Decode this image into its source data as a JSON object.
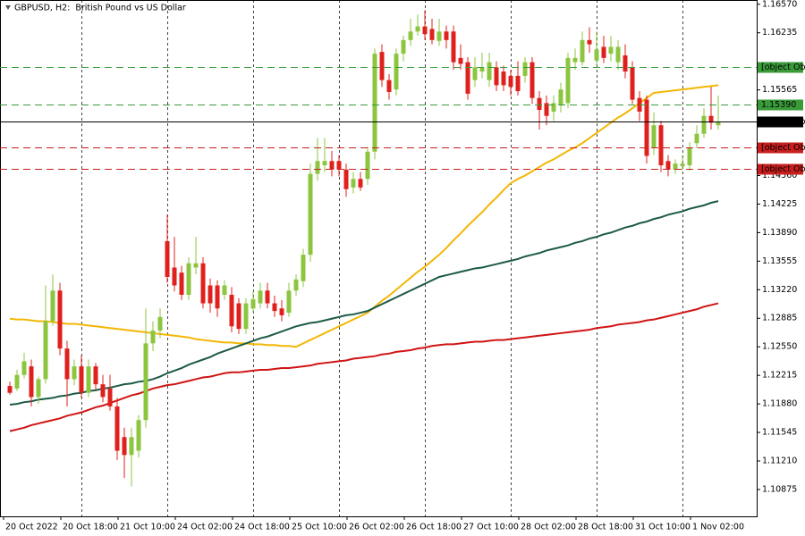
{
  "chart_data": {
    "type": "candlestick",
    "title": "GBPUSD, H2:  British Pound vs US Dollar",
    "categories": [
      "20 Oct 2022",
      null,
      null,
      null,
      null,
      null,
      null,
      null,
      "20 Oct 18:00",
      null,
      null,
      null,
      null,
      null,
      null,
      null,
      "21 Oct 10:00",
      null,
      null,
      null,
      null,
      null,
      null,
      null,
      "24 Oct 02:00",
      null,
      null,
      null,
      null,
      null,
      null,
      null,
      "24 Oct 18:00",
      null,
      null,
      null,
      null,
      null,
      null,
      null,
      "25 Oct 10:00",
      null,
      null,
      null,
      null,
      null,
      null,
      null,
      "26 Oct 02:00",
      null,
      null,
      null,
      null,
      null,
      null,
      null,
      "26 Oct 18:00",
      null,
      null,
      null,
      null,
      null,
      null,
      null,
      "27 Oct 10:00",
      null,
      null,
      null,
      null,
      null,
      null,
      null,
      "28 Oct 02:00",
      null,
      null,
      null,
      null,
      null,
      null,
      null,
      "28 Oct 18:00",
      null,
      null,
      null,
      null,
      null,
      null,
      null,
      "31 Oct 10:00",
      null,
      null,
      null,
      null,
      null,
      null,
      null,
      "1 Nov 02:00",
      null,
      null,
      null
    ],
    "open": [
      1.1209,
      1.1206,
      1.1222,
      1.1232,
      1.1196,
      1.1217,
      1.1285,
      1.1321,
      1.1253,
      1.1217,
      1.1232,
      1.1201,
      1.1232,
      1.1211,
      1.1206,
      1.1185,
      1.1149,
      1.1128,
      1.1133,
      1.1169,
      1.1259,
      1.1274,
      1.1379,
      1.1348,
      1.1342,
      1.1316,
      1.1348,
      1.1353,
      1.1327,
      1.1327,
      1.1316,
      1.1316,
      1.1306,
      1.1276,
      1.13,
      1.1306,
      1.1321,
      1.1306,
      1.13,
      1.1295,
      1.1321,
      1.1332,
      1.1363,
      1.1458,
      1.1468,
      1.1473,
      1.1473,
      1.1463,
      1.1442,
      1.1452,
      1.1452,
      1.1484,
      1.1601,
      1.1568,
      1.1557,
      1.1599,
      1.1615,
      1.1625,
      1.1631,
      1.1628,
      1.1614,
      1.1625,
      1.1625,
      1.1594,
      1.1589,
      1.1568,
      1.1578,
      1.1568,
      1.1583,
      1.1578,
      1.1573,
      1.1573,
      1.1573,
      1.1589,
      1.1547,
      1.1541,
      1.1531,
      1.1539,
      1.1541,
      1.1589,
      1.1589,
      1.1615,
      1.1591,
      1.1607,
      1.1599,
      1.1589,
      1.1597,
      1.1583,
      1.1547,
      1.1545,
      1.1489,
      1.1515,
      1.1473,
      1.1463,
      1.1467,
      1.1468,
      1.1494,
      1.1505,
      1.1526,
      1.1515
    ],
    "high": [
      1.1214,
      1.1228,
      1.1248,
      1.124,
      1.122,
      1.1327,
      1.134,
      1.133,
      1.1262,
      1.124,
      1.1245,
      1.124,
      1.1236,
      1.1222,
      1.1222,
      1.1195,
      1.116,
      1.116,
      1.1175,
      1.13,
      1.1285,
      1.13,
      1.141,
      1.1384,
      1.135,
      1.136,
      1.1384,
      1.136,
      1.1335,
      1.1333,
      1.1333,
      1.1325,
      1.1312,
      1.1312,
      1.132,
      1.133,
      1.133,
      1.1315,
      1.131,
      1.133,
      1.134,
      1.137,
      1.147,
      1.15,
      1.15,
      1.1485,
      1.148,
      1.147,
      1.146,
      1.146,
      1.149,
      1.1605,
      1.161,
      1.1575,
      1.1605,
      1.162,
      1.164,
      1.1645,
      1.165,
      1.164,
      1.164,
      1.1632,
      1.1632,
      1.161,
      1.1595,
      1.1595,
      1.16,
      1.16,
      1.159,
      1.1585,
      1.158,
      1.159,
      1.1595,
      1.1595,
      1.1555,
      1.155,
      1.155,
      1.1565,
      1.16,
      1.1605,
      1.1625,
      1.163,
      1.1625,
      1.162,
      1.162,
      1.1615,
      1.161,
      1.159,
      1.1555,
      1.155,
      1.153,
      1.152,
      1.148,
      1.1475,
      1.148,
      1.1495,
      1.1515,
      1.1535,
      1.156,
      1.155
    ],
    "low": [
      1.1199,
      1.1203,
      1.1218,
      1.1185,
      1.1188,
      1.1212,
      1.128,
      1.1245,
      1.1185,
      1.121,
      1.1195,
      1.1196,
      1.1205,
      1.119,
      1.118,
      1.1122,
      1.1101,
      1.1091,
      1.1125,
      1.116,
      1.125,
      1.1265,
      1.133,
      1.132,
      1.131,
      1.131,
      1.134,
      1.13,
      1.1295,
      1.129,
      1.131,
      1.1272,
      1.127,
      1.127,
      1.1295,
      1.13,
      1.13,
      1.129,
      1.1285,
      1.129,
      1.1315,
      1.1325,
      1.1355,
      1.145,
      1.146,
      1.1455,
      1.1455,
      1.1431,
      1.1435,
      1.1438,
      1.1445,
      1.1475,
      1.156,
      1.1545,
      1.155,
      1.159,
      1.1608,
      1.162,
      1.1615,
      1.161,
      1.1608,
      1.1605,
      1.158,
      1.158,
      1.1545,
      1.156,
      1.157,
      1.156,
      1.1555,
      1.1555,
      1.155,
      1.155,
      1.1565,
      1.154,
      1.151,
      1.1515,
      1.152,
      1.153,
      1.1535,
      1.158,
      1.1585,
      1.16,
      1.1585,
      1.1588,
      1.159,
      1.158,
      1.157,
      1.154,
      1.152,
      1.147,
      1.148,
      1.146,
      1.1455,
      1.1458,
      1.1462,
      1.1462,
      1.1488,
      1.15,
      1.151,
      1.151
    ],
    "close": [
      1.1201,
      1.1222,
      1.1238,
      1.1196,
      1.1217,
      1.1285,
      1.1321,
      1.1253,
      1.1217,
      1.1232,
      1.1201,
      1.1232,
      1.1211,
      1.1196,
      1.1185,
      1.1133,
      1.1128,
      1.1149,
      1.1169,
      1.1259,
      1.1274,
      1.129,
      1.1337,
      1.1327,
      1.1316,
      1.1353,
      1.1353,
      1.1306,
      1.1306,
      1.13,
      1.1327,
      1.1279,
      1.1276,
      1.1306,
      1.1311,
      1.1321,
      1.1306,
      1.1297,
      1.1292,
      1.1321,
      1.1334,
      1.1363,
      1.1458,
      1.1473,
      1.1473,
      1.1463,
      1.1463,
      1.144,
      1.1452,
      1.1442,
      1.1484,
      1.1599,
      1.1568,
      1.1554,
      1.1599,
      1.1615,
      1.1625,
      1.1631,
      1.1622,
      1.1615,
      1.1625,
      1.1615,
      1.1589,
      1.1587,
      1.1552,
      1.1583,
      1.1583,
      1.1589,
      1.1562,
      1.1562,
      1.156,
      1.1555,
      1.1589,
      1.1547,
      1.1533,
      1.1526,
      1.1541,
      1.1557,
      1.1594,
      1.1594,
      1.1615,
      1.161,
      1.1604,
      1.1594,
      1.1607,
      1.1607,
      1.1578,
      1.1545,
      1.1531,
      1.1479,
      1.1515,
      1.1468,
      1.1463,
      1.147,
      1.147,
      1.1489,
      1.1505,
      1.1526,
      1.1518,
      1.1519
    ],
    "up_color": "#8cc63f",
    "down_color": "#e0201c",
    "moving_averages": [
      {
        "color": "#f2b705",
        "values": [
          1.1288,
          1.1287,
          1.1287,
          1.1286,
          1.1285,
          1.1285,
          1.1284,
          1.1283,
          1.1282,
          1.1282,
          1.1281,
          1.128,
          1.1279,
          1.1278,
          1.1277,
          1.1276,
          1.1275,
          1.1274,
          1.1273,
          1.1272,
          1.1271,
          1.127,
          1.1269,
          1.1268,
          1.1267,
          1.1266,
          1.1264,
          1.1263,
          1.1262,
          1.1261,
          1.126,
          1.126,
          1.1259,
          1.1259,
          1.1258,
          1.1258,
          1.1257,
          1.1257,
          1.1256,
          1.1256,
          1.1255,
          1.1259,
          1.1263,
          1.1267,
          1.1271,
          1.1275,
          1.1279,
          1.1283,
          1.1287,
          1.1291,
          1.1295,
          1.1302,
          1.1309,
          1.1315,
          1.1322,
          1.1329,
          1.1336,
          1.1343,
          1.1349,
          1.1356,
          1.1363,
          1.1371,
          1.138,
          1.1388,
          1.1397,
          1.1405,
          1.1413,
          1.1422,
          1.143,
          1.1439,
          1.1447,
          1.1452,
          1.1456,
          1.1461,
          1.1466,
          1.1471,
          1.1475,
          1.148,
          1.1485,
          1.1489,
          1.1494,
          1.15,
          1.1506,
          1.1512,
          1.1518,
          1.1524,
          1.1529,
          1.1535,
          1.1541,
          1.1547,
          1.1553,
          1.1554,
          1.1555,
          1.1556,
          1.1557,
          1.1558,
          1.1559,
          1.156,
          1.1561,
          1.1562
        ]
      },
      {
        "color": "#1d5a46",
        "values": [
          1.1187,
          1.1188,
          1.119,
          1.1191,
          1.1193,
          1.1194,
          1.1195,
          1.1197,
          1.1198,
          1.12,
          1.1201,
          1.1203,
          1.1204,
          1.1206,
          1.1207,
          1.1209,
          1.1211,
          1.1212,
          1.1214,
          1.1215,
          1.1217,
          1.122,
          1.1224,
          1.1227,
          1.123,
          1.1234,
          1.1237,
          1.124,
          1.1243,
          1.1247,
          1.125,
          1.1253,
          1.1256,
          1.1259,
          1.1262,
          1.1265,
          1.1267,
          1.127,
          1.1273,
          1.1276,
          1.1279,
          1.1281,
          1.1283,
          1.1284,
          1.1286,
          1.1288,
          1.129,
          1.1292,
          1.1293,
          1.1295,
          1.1297,
          1.1301,
          1.1305,
          1.1309,
          1.1313,
          1.1317,
          1.1321,
          1.1325,
          1.1329,
          1.1333,
          1.1337,
          1.1339,
          1.1341,
          1.1343,
          1.1345,
          1.1347,
          1.1348,
          1.135,
          1.1352,
          1.1354,
          1.1356,
          1.1358,
          1.1361,
          1.1363,
          1.1365,
          1.1368,
          1.137,
          1.1372,
          1.1374,
          1.1377,
          1.1379,
          1.1382,
          1.1384,
          1.1387,
          1.1389,
          1.1392,
          1.1395,
          1.1397,
          1.14,
          1.1402,
          1.1405,
          1.1407,
          1.141,
          1.1412,
          1.1414,
          1.1417,
          1.1419,
          1.1421,
          1.1424,
          1.1426
        ]
      },
      {
        "color": "#d01414",
        "values": [
          1.1156,
          1.1158,
          1.116,
          1.1163,
          1.1165,
          1.1167,
          1.1169,
          1.1171,
          1.1174,
          1.1176,
          1.1178,
          1.1181,
          1.1184,
          1.1186,
          1.1189,
          1.1192,
          1.1195,
          1.1198,
          1.12,
          1.1203,
          1.1206,
          1.1208,
          1.121,
          1.1211,
          1.1213,
          1.1215,
          1.1217,
          1.1219,
          1.122,
          1.1222,
          1.1224,
          1.1225,
          1.1225,
          1.1226,
          1.1227,
          1.1228,
          1.1228,
          1.1229,
          1.123,
          1.123,
          1.1231,
          1.1232,
          1.1233,
          1.1235,
          1.1236,
          1.1237,
          1.1238,
          1.1239,
          1.1241,
          1.1242,
          1.1243,
          1.1244,
          1.1246,
          1.1247,
          1.1249,
          1.125,
          1.1251,
          1.1253,
          1.1254,
          1.1256,
          1.1257,
          1.1258,
          1.1258,
          1.1259,
          1.126,
          1.1261,
          1.1261,
          1.1262,
          1.1263,
          1.1263,
          1.1264,
          1.1265,
          1.1266,
          1.1267,
          1.1268,
          1.1269,
          1.127,
          1.1271,
          1.1272,
          1.1273,
          1.1274,
          1.1275,
          1.1277,
          1.1278,
          1.1279,
          1.1281,
          1.1282,
          1.1283,
          1.1284,
          1.1286,
          1.1287,
          1.1289,
          1.1291,
          1.1293,
          1.1295,
          1.1297,
          1.1299,
          1.1302,
          1.1304,
          1.1306
        ]
      }
    ],
    "levels": [
      {
        "value": 1.15837,
        "color": "#3a9a3a",
        "style": "dashed"
      },
      {
        "value": 1.1539,
        "label": "1.15390",
        "color": "#3a9a3a",
        "style": "dashed"
      },
      {
        "value": 1.15192,
        "color": "#000000",
        "style": "solid"
      },
      {
        "value": 1.14889,
        "color": "#c81e1e",
        "style": "dashed"
      },
      {
        "value": 1.14636,
        "color": "#c81e1e",
        "style": "dashed"
      }
    ],
    "ylim": [
      1.1056,
      1.1662
    ],
    "yticks": [
      {
        "value": 1.1657,
        "label": "1.16570"
      },
      1.16235,
      1.15565,
      {
        "value": 1.1456,
        "label": "1.14560"
      },
      1.14225,
      {
        "value": 1.1389,
        "label": "1.13890"
      },
      1.13555,
      {
        "value": 1.1322,
        "label": "1.13220"
      },
      1.12885,
      {
        "value": 1.1255,
        "label": "1.12550"
      },
      1.12215,
      {
        "value": 1.1188,
        "label": "1.11880"
      },
      1.11545,
      {
        "value": 1.1121,
        "label": "1.11210"
      },
      1.10875
    ]
  }
}
